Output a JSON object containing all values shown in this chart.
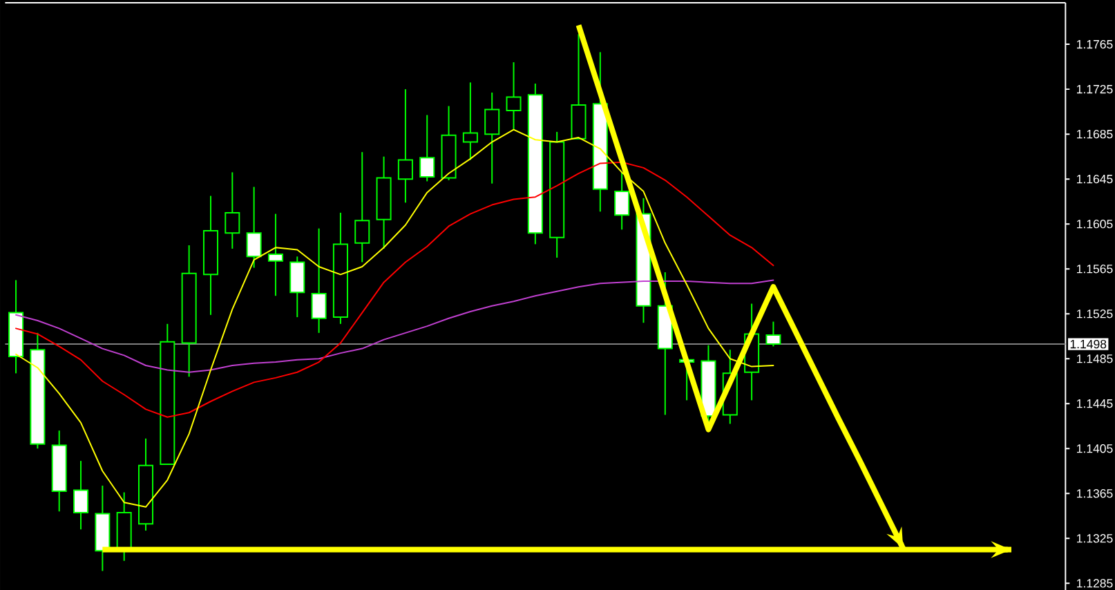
{
  "chart_data": {
    "type": "candlestick",
    "categories": [
      null,
      null,
      null,
      null,
      null,
      null,
      null,
      null,
      null,
      null,
      null,
      null,
      null,
      null,
      null,
      null,
      null,
      null,
      null,
      null,
      null,
      null,
      null,
      null,
      null,
      null,
      null,
      null,
      null,
      null,
      null,
      null,
      null,
      null,
      null,
      null,
      null,
      null,
      null,
      null,
      null,
      null,
      null,
      null,
      null,
      null,
      null,
      null,
      null
    ],
    "ohlc": [
      [
        1.1526,
        1.1555,
        1.1472,
        1.1487
      ],
      [
        1.1493,
        1.1508,
        1.1405,
        1.1409
      ],
      [
        1.1408,
        1.1421,
        1.1349,
        1.1367
      ],
      [
        1.1368,
        1.1394,
        1.1333,
        1.1348
      ],
      [
        1.1347,
        1.1372,
        1.1296,
        1.1314
      ],
      [
        1.1314,
        1.1366,
        1.1305,
        1.1348
      ],
      [
        1.1338,
        1.1414,
        1.1332,
        1.139
      ],
      [
        1.1391,
        1.1516,
        1.1391,
        1.15
      ],
      [
        1.1499,
        1.1586,
        1.1469,
        1.1561
      ],
      [
        1.156,
        1.163,
        1.1524,
        1.1599
      ],
      [
        1.1597,
        1.1651,
        1.1583,
        1.1615
      ],
      [
        1.1597,
        1.1638,
        1.1566,
        1.1576
      ],
      [
        1.1578,
        1.1614,
        1.1541,
        1.1572
      ],
      [
        1.1571,
        1.1576,
        1.1522,
        1.1544
      ],
      [
        1.1543,
        1.1601,
        1.1508,
        1.1521
      ],
      [
        1.1522,
        1.1615,
        1.1516,
        1.1587
      ],
      [
        1.1588,
        1.1669,
        1.1571,
        1.1608
      ],
      [
        1.1609,
        1.1665,
        1.1583,
        1.1646
      ],
      [
        1.1645,
        1.1725,
        1.1624,
        1.1662
      ],
      [
        1.1664,
        1.1702,
        1.1643,
        1.1647
      ],
      [
        1.1646,
        1.171,
        1.1644,
        1.1684
      ],
      [
        1.1678,
        1.1731,
        1.1662,
        1.1686
      ],
      [
        1.1685,
        1.1722,
        1.1641,
        1.1707
      ],
      [
        1.1706,
        1.1749,
        1.1689,
        1.1718
      ],
      [
        1.172,
        1.173,
        1.1587,
        1.1597
      ],
      [
        1.1593,
        1.1687,
        1.1575,
        1.1678
      ],
      [
        1.1681,
        1.1774,
        1.1681,
        1.1711
      ],
      [
        1.1712,
        1.1758,
        1.1616,
        1.1636
      ],
      [
        1.1634,
        1.1651,
        1.16,
        1.1613
      ],
      [
        1.1614,
        1.1628,
        1.1517,
        1.1532
      ],
      [
        1.1532,
        1.1562,
        1.1435,
        1.1494
      ],
      [
        1.1484,
        1.1485,
        1.1448,
        1.1482
      ],
      [
        1.1483,
        1.1497,
        1.1426,
        1.1434
      ],
      [
        1.1435,
        1.1493,
        1.1427,
        1.1472
      ],
      [
        1.1473,
        1.1534,
        1.1448,
        1.1507
      ],
      [
        1.1506,
        1.1518,
        1.1496,
        1.1498
      ],
      null,
      null,
      null,
      null,
      null,
      null,
      null,
      null,
      null,
      null,
      null,
      null,
      null
    ],
    "color": "#00ff00",
    "colors": [
      "#ffffff",
      "#ffffff",
      "#ffffff",
      "#ffffff",
      "#ffffff",
      "#000000",
      "#000000",
      "#000000",
      "#000000",
      "#000000",
      "#000000",
      "#ffffff",
      "#ffffff",
      "#ffffff",
      "#ffffff",
      "#000000",
      "#000000",
      "#000000",
      "#000000",
      "#ffffff",
      "#000000",
      "#000000",
      "#000000",
      "#000000",
      "#ffffff",
      "#000000",
      "#000000",
      "#ffffff",
      "#ffffff",
      "#ffffff",
      "#ffffff",
      "#ffffff",
      "#ffffff",
      "#000000",
      "#000000",
      "#ffffff",
      null,
      null,
      null,
      null,
      null,
      null,
      null,
      null,
      null,
      null,
      null,
      null,
      null
    ],
    "series": [
      {
        "type": "line",
        "color": "#c040d0",
        "values": [
          1.1524,
          1.1519,
          1.1512,
          1.1503,
          1.1494,
          1.1488,
          1.1479,
          1.1475,
          1.1473,
          1.1475,
          1.1479,
          1.1481,
          1.1482,
          1.1484,
          1.1485,
          1.149,
          1.1494,
          1.1502,
          1.1508,
          1.1514,
          1.1521,
          1.1527,
          1.1532,
          1.1536,
          1.1541,
          1.1545,
          1.1549,
          1.1552,
          1.1553,
          1.1554,
          1.1554,
          1.1554,
          1.1553,
          1.1552,
          1.1552,
          1.1555,
          null,
          null,
          null,
          null,
          null,
          null,
          null,
          null,
          null,
          null,
          null,
          null,
          null
        ]
      },
      {
        "type": "line",
        "color": "#ff0000",
        "values": [
          1.1512,
          1.1507,
          1.1496,
          1.1484,
          1.1465,
          1.1453,
          1.144,
          1.1433,
          1.1437,
          1.1447,
          1.1456,
          1.1464,
          1.1468,
          1.1473,
          1.1482,
          1.1499,
          1.1526,
          1.1553,
          1.1571,
          1.1585,
          1.1603,
          1.1614,
          1.1622,
          1.1627,
          1.1629,
          1.1639,
          1.165,
          1.1659,
          1.166,
          1.1655,
          1.1644,
          1.1629,
          1.1612,
          1.1595,
          1.1584,
          1.1568,
          null,
          null,
          null,
          null,
          null,
          null,
          null,
          null,
          null,
          null,
          null,
          null,
          null
        ]
      },
      {
        "type": "line",
        "color": "#ffff00",
        "values": [
          1.1489,
          1.1477,
          1.1454,
          1.1428,
          1.1385,
          1.1357,
          1.1353,
          1.1377,
          1.1418,
          1.1475,
          1.1529,
          1.1573,
          1.1584,
          1.1582,
          1.1567,
          1.156,
          1.1567,
          1.1584,
          1.1604,
          1.1633,
          1.165,
          1.1663,
          1.1678,
          1.1689,
          1.168,
          1.1678,
          1.1682,
          1.1672,
          1.1651,
          1.1634,
          1.1588,
          1.1551,
          1.1512,
          1.1485,
          1.1478,
          1.1479,
          null,
          null,
          null,
          null,
          null,
          null,
          null,
          null,
          null,
          null,
          null,
          null,
          null
        ]
      },
      {
        "type": "line",
        "color": "#ffff00",
        "values": [
          null,
          null,
          null,
          null,
          null,
          null,
          null,
          null,
          null,
          null,
          null,
          null,
          null,
          null,
          null,
          null,
          null,
          null,
          null,
          null,
          null,
          null,
          null,
          null,
          null,
          null,
          1.1782,
          1.1722,
          1.1662,
          1.1602,
          1.1542,
          1.1482,
          1.1422,
          1.1464,
          1.1507,
          1.1549,
          1.151,
          1.1471,
          1.1432,
          1.1394,
          1.1355,
          1.1316,
          null,
          null,
          null,
          null,
          null,
          null,
          null
        ]
      },
      {
        "type": "line",
        "color": "#ffff00",
        "values": [
          null,
          null,
          null,
          null,
          1.1315,
          1.1315,
          1.1315,
          1.1315,
          1.1315,
          1.1315,
          1.1315,
          1.1315,
          1.1315,
          1.1315,
          1.1315,
          1.1315,
          1.1315,
          1.1315,
          1.1315,
          1.1315,
          1.1315,
          1.1315,
          1.1315,
          1.1315,
          1.1315,
          1.1315,
          1.1315,
          1.1315,
          1.1315,
          1.1315,
          1.1315,
          1.1315,
          1.1315,
          1.1315,
          1.1315,
          1.1315,
          1.1315,
          1.1315,
          1.1315,
          1.1315,
          1.1315,
          1.1315,
          1.1315,
          1.1315,
          1.1315,
          1.1315,
          1.1315,
          null,
          null
        ]
      }
    ],
    "ylim": [
      1.1279,
      1.1802
    ],
    "yticks": [
      1.1285,
      1.1325,
      1.1365,
      1.1405,
      1.1445,
      1.1485,
      1.1525,
      1.1565,
      1.1605,
      1.1645,
      1.1685,
      1.1725,
      1.1765
    ],
    "ref_lines": [
      {
        "axis": "y",
        "value": 1.1498,
        "label": "1.1498",
        "color": "#808080"
      }
    ],
    "tick_labels": "y",
    "marker": "none"
  }
}
